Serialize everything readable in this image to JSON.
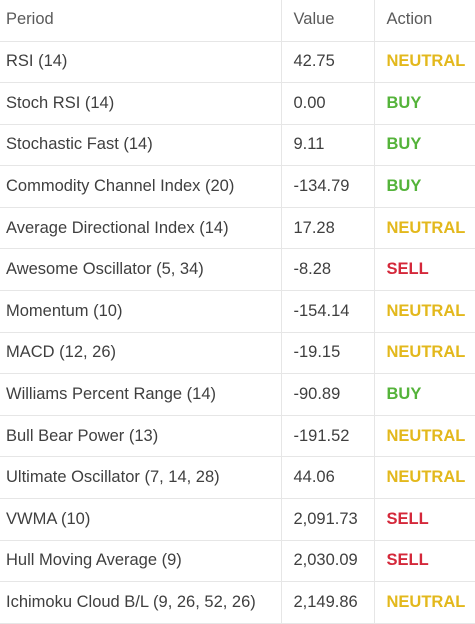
{
  "table": {
    "headers": {
      "period": "Period",
      "value": "Value",
      "action": "Action"
    },
    "rows": [
      {
        "period": "RSI (14)",
        "value": "42.75",
        "action": "NEUTRAL"
      },
      {
        "period": "Stoch RSI (14)",
        "value": "0.00",
        "action": "BUY"
      },
      {
        "period": "Stochastic Fast (14)",
        "value": "9.11",
        "action": "BUY"
      },
      {
        "period": "Commodity Channel Index (20)",
        "value": "-134.79",
        "action": "BUY"
      },
      {
        "period": "Average Directional Index (14)",
        "value": "17.28",
        "action": "NEUTRAL"
      },
      {
        "period": "Awesome Oscillator (5, 34)",
        "value": "-8.28",
        "action": "SELL"
      },
      {
        "period": "Momentum (10)",
        "value": "-154.14",
        "action": "NEUTRAL"
      },
      {
        "period": "MACD (12, 26)",
        "value": "-19.15",
        "action": "NEUTRAL"
      },
      {
        "period": "Williams Percent Range (14)",
        "value": "-90.89",
        "action": "BUY"
      },
      {
        "period": "Bull Bear Power (13)",
        "value": "-191.52",
        "action": "NEUTRAL"
      },
      {
        "period": "Ultimate Oscillator (7, 14, 28)",
        "value": "44.06",
        "action": "NEUTRAL"
      },
      {
        "period": "VWMA (10)",
        "value": "2,091.73",
        "action": "SELL"
      },
      {
        "period": "Hull Moving Average (9)",
        "value": "2,030.09",
        "action": "SELL"
      },
      {
        "period": "Ichimoku Cloud B/L (9, 26, 52, 26)",
        "value": "2,149.86",
        "action": "NEUTRAL"
      }
    ]
  },
  "colors": {
    "neutral": "#e3b81c",
    "buy": "#54b33a",
    "sell": "#d4283a",
    "text": "#3f3f3f",
    "grid": "#e6e6e6"
  }
}
